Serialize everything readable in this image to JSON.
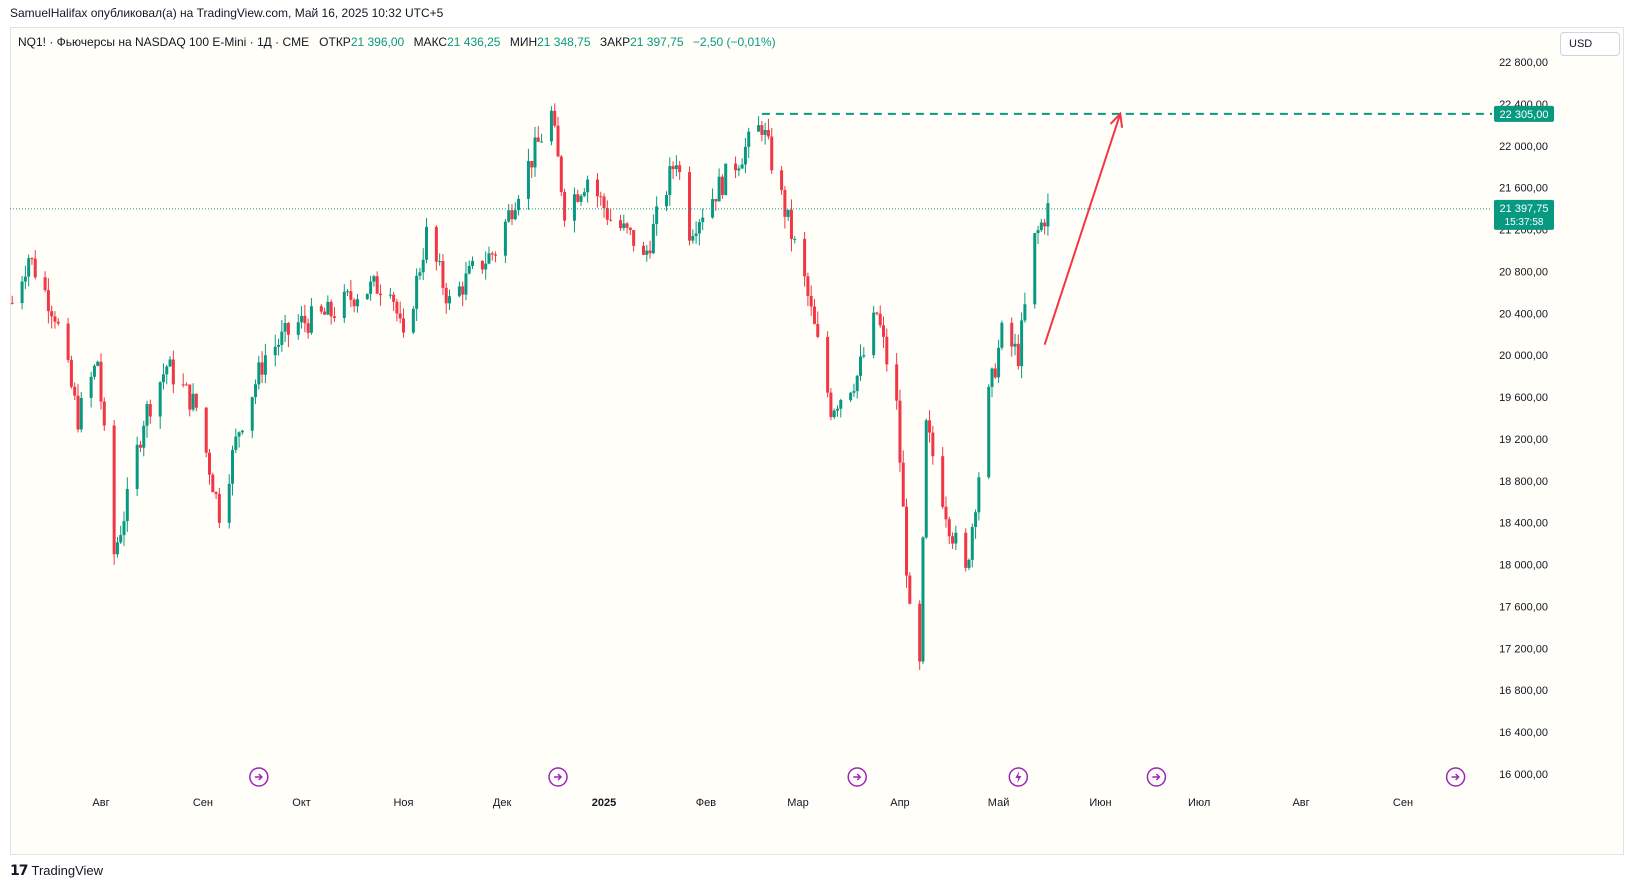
{
  "header": {
    "publisher": "SamuelHalifax опубликовал(а) на TradingView.com, Май 16, 2025 10:32 UTC+5"
  },
  "legend": {
    "symbol": "NQ1! · Фьючерсы на NASDAQ 100 E-Mini · 1Д · CME",
    "open_label": "ОТКР",
    "open": "21 396,00",
    "high_label": "МАКС",
    "high": "21 436,25",
    "low_label": "МИН",
    "low": "21 348,75",
    "close_label": "ЗАКР",
    "close": "21 397,75",
    "change": "−2,50 (−0,01%)"
  },
  "currency": "USD",
  "footer": {
    "brand": "TradingView",
    "logo": "tradingview-logo-icon"
  },
  "colors": {
    "up": "#089981",
    "down": "#f23645",
    "arrow": "#f23645",
    "level": "#089981"
  },
  "chart_data": {
    "type": "candlestick",
    "ylim": [
      16000,
      22800
    ],
    "y_ticks": [
      "16 000,00",
      "16 400,00",
      "16 800,00",
      "17 200,00",
      "17 600,00",
      "18 000,00",
      "18 400,00",
      "18 800,00",
      "19 200,00",
      "19 600,00",
      "20 000,00",
      "20 400,00",
      "20 800,00",
      "21 200,00",
      "21 600,00",
      "22 000,00",
      "22 400,00",
      "22 800,00"
    ],
    "y_tick_values": [
      16000,
      16400,
      16800,
      17200,
      17600,
      18000,
      18400,
      18800,
      19200,
      19600,
      20000,
      20400,
      20800,
      21200,
      21600,
      22000,
      22400,
      22800
    ],
    "x_labels": [
      {
        "label": "Авг",
        "date": "2024-08-01"
      },
      {
        "label": "Сен",
        "date": "2024-09-01"
      },
      {
        "label": "Окт",
        "date": "2024-10-01"
      },
      {
        "label": "Ноя",
        "date": "2024-11-01"
      },
      {
        "label": "Дек",
        "date": "2024-12-01"
      },
      {
        "label": "2025",
        "date": "2025-01-01"
      },
      {
        "label": "Фев",
        "date": "2025-02-01"
      },
      {
        "label": "Мар",
        "date": "2025-03-01"
      },
      {
        "label": "Апр",
        "date": "2025-04-01"
      },
      {
        "label": "Май",
        "date": "2025-05-01"
      },
      {
        "label": "Июн",
        "date": "2025-06-01"
      },
      {
        "label": "Июл",
        "date": "2025-07-01"
      },
      {
        "label": "Авг",
        "date": "2025-08-01"
      },
      {
        "label": "Сен",
        "date": "2025-09-01"
      }
    ],
    "path_points": [
      {
        "date": "2024-07-05",
        "close": 20500
      },
      {
        "date": "2024-07-10",
        "close": 20950
      },
      {
        "date": "2024-07-18",
        "close": 20400
      },
      {
        "date": "2024-07-25",
        "close": 19400
      },
      {
        "date": "2024-07-31",
        "close": 19950
      },
      {
        "date": "2024-08-05",
        "close": 18100
      },
      {
        "date": "2024-08-09",
        "close": 18600
      },
      {
        "date": "2024-08-14",
        "close": 19400
      },
      {
        "date": "2024-08-21",
        "close": 19900
      },
      {
        "date": "2024-08-30",
        "close": 19500
      },
      {
        "date": "2024-09-06",
        "close": 18500
      },
      {
        "date": "2024-09-12",
        "close": 19300
      },
      {
        "date": "2024-09-20",
        "close": 20000
      },
      {
        "date": "2024-09-30",
        "close": 20300
      },
      {
        "date": "2024-10-10",
        "close": 20400
      },
      {
        "date": "2024-10-18",
        "close": 20600
      },
      {
        "date": "2024-10-28",
        "close": 20700
      },
      {
        "date": "2024-11-01",
        "close": 20100
      },
      {
        "date": "2024-11-08",
        "close": 21150
      },
      {
        "date": "2024-11-15",
        "close": 20500
      },
      {
        "date": "2024-11-22",
        "close": 20800
      },
      {
        "date": "2024-11-29",
        "close": 21000
      },
      {
        "date": "2024-12-06",
        "close": 21600
      },
      {
        "date": "2024-12-16",
        "close": 22300
      },
      {
        "date": "2024-12-20",
        "close": 21400
      },
      {
        "date": "2024-12-27",
        "close": 21700
      },
      {
        "date": "2025-01-03",
        "close": 21300
      },
      {
        "date": "2025-01-10",
        "close": 21100
      },
      {
        "date": "2025-01-13",
        "close": 20900
      },
      {
        "date": "2025-01-23",
        "close": 21900
      },
      {
        "date": "2025-01-27",
        "close": 21200
      },
      {
        "date": "2025-02-07",
        "close": 21700
      },
      {
        "date": "2025-02-18",
        "close": 22200
      },
      {
        "date": "2025-02-24",
        "close": 21500
      },
      {
        "date": "2025-03-03",
        "close": 20700
      },
      {
        "date": "2025-03-11",
        "close": 19500
      },
      {
        "date": "2025-03-19",
        "close": 19800
      },
      {
        "date": "2025-03-25",
        "close": 20400
      },
      {
        "date": "2025-03-31",
        "close": 19500
      },
      {
        "date": "2025-04-04",
        "close": 17500
      },
      {
        "date": "2025-04-07",
        "close": 17000
      },
      {
        "date": "2025-04-09",
        "close": 19300
      },
      {
        "date": "2025-04-16",
        "close": 18400
      },
      {
        "date": "2025-04-21",
        "close": 17900
      },
      {
        "date": "2025-04-28",
        "close": 19600
      },
      {
        "date": "2025-05-02",
        "close": 20200
      },
      {
        "date": "2025-05-07",
        "close": 20000
      },
      {
        "date": "2025-05-12",
        "close": 21100
      },
      {
        "date": "2025-05-16",
        "close": 21397.75
      }
    ],
    "last_price": {
      "value": 21397.75,
      "label": "21 397,75",
      "countdown": "15:37:58"
    },
    "horizontal_level": {
      "value": 22305,
      "label": "22 305,00",
      "from_date": "2025-02-18"
    },
    "projection_arrow": {
      "from": {
        "date": "2025-05-15",
        "value": 20100
      },
      "to": {
        "date": "2025-06-07",
        "value": 22305
      }
    },
    "event_markers": [
      {
        "date": "2024-09-18",
        "icon": "dividend-arrow-icon"
      },
      {
        "date": "2024-12-18",
        "icon": "dividend-arrow-icon"
      },
      {
        "date": "2025-03-19",
        "icon": "dividend-arrow-icon"
      },
      {
        "date": "2025-05-07",
        "icon": "lightning-icon"
      },
      {
        "date": "2025-06-18",
        "icon": "dividend-arrow-icon"
      },
      {
        "date": "2025-09-17",
        "icon": "dividend-arrow-icon"
      }
    ]
  }
}
